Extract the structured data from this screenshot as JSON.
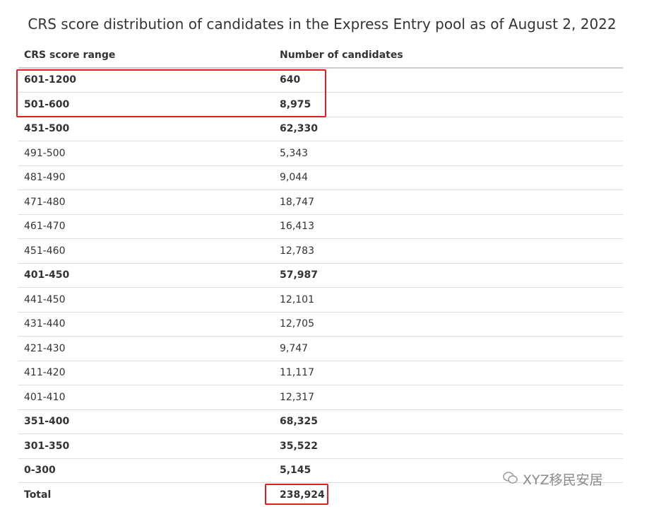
{
  "title": "CRS score distribution of candidates in the Express Entry pool as of August 2, 2022",
  "table": {
    "columns": [
      "CRS score range",
      "Number of candidates"
    ],
    "rows": [
      {
        "cells": [
          "601-1200",
          "640"
        ],
        "bold": true
      },
      {
        "cells": [
          "501-600",
          "8,975"
        ],
        "bold": true
      },
      {
        "cells": [
          "451-500",
          "62,330"
        ],
        "bold": true
      },
      {
        "cells": [
          "491-500",
          "5,343"
        ],
        "bold": false
      },
      {
        "cells": [
          "481-490",
          "9,044"
        ],
        "bold": false
      },
      {
        "cells": [
          "471-480",
          "18,747"
        ],
        "bold": false
      },
      {
        "cells": [
          "461-470",
          "16,413"
        ],
        "bold": false
      },
      {
        "cells": [
          "451-460",
          "12,783"
        ],
        "bold": false
      },
      {
        "cells": [
          "401-450",
          "57,987"
        ],
        "bold": true
      },
      {
        "cells": [
          "441-450",
          "12,101"
        ],
        "bold": false
      },
      {
        "cells": [
          "431-440",
          "12,705"
        ],
        "bold": false
      },
      {
        "cells": [
          "421-430",
          "9,747"
        ],
        "bold": false
      },
      {
        "cells": [
          "411-420",
          "11,117"
        ],
        "bold": false
      },
      {
        "cells": [
          "401-410",
          "12,317"
        ],
        "bold": false
      },
      {
        "cells": [
          "351-400",
          "68,325"
        ],
        "bold": true
      },
      {
        "cells": [
          "301-350",
          "35,522"
        ],
        "bold": true
      },
      {
        "cells": [
          "0-300",
          "5,145"
        ],
        "bold": true
      },
      {
        "cells": [
          "Total",
          "238,924"
        ],
        "bold": true
      }
    ]
  },
  "watermark": "XYZ移民安居"
}
